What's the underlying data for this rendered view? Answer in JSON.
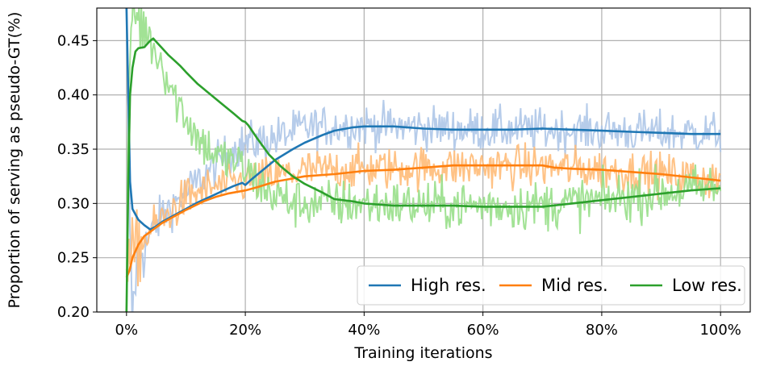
{
  "chart_data": {
    "type": "line",
    "title": "",
    "xlabel": "Training iterations",
    "ylabel": "Proportion of serving as pseudo-GT(%)",
    "xlim": [
      -5,
      105
    ],
    "ylim": [
      0.2,
      0.48
    ],
    "x_ticks": [
      0,
      20,
      40,
      60,
      80,
      100
    ],
    "x_tick_labels": [
      "0%",
      "20%",
      "40%",
      "60%",
      "80%",
      "100%"
    ],
    "y_ticks": [
      0.2,
      0.25,
      0.3,
      0.35,
      0.4,
      0.45
    ],
    "y_tick_labels": [
      "0.20",
      "0.25",
      "0.30",
      "0.35",
      "0.40",
      "0.45"
    ],
    "grid": true,
    "legend_position": "lower-right",
    "series": [
      {
        "name": "High res.",
        "color": "#1f77b4",
        "raw_color": "#aec7e8",
        "smoothed": [
          [
            0,
            0.48
          ],
          [
            0.3,
            0.4
          ],
          [
            0.6,
            0.32
          ],
          [
            1,
            0.295
          ],
          [
            2,
            0.285
          ],
          [
            3,
            0.28
          ],
          [
            4,
            0.276
          ],
          [
            5,
            0.279
          ],
          [
            6,
            0.283
          ],
          [
            8,
            0.289
          ],
          [
            10,
            0.295
          ],
          [
            12,
            0.301
          ],
          [
            14,
            0.306
          ],
          [
            16,
            0.311
          ],
          [
            18,
            0.316
          ],
          [
            19.5,
            0.319
          ],
          [
            20,
            0.317
          ],
          [
            21,
            0.322
          ],
          [
            23,
            0.331
          ],
          [
            25,
            0.34
          ],
          [
            28,
            0.35
          ],
          [
            30,
            0.356
          ],
          [
            33,
            0.363
          ],
          [
            35,
            0.367
          ],
          [
            38,
            0.37
          ],
          [
            40,
            0.371
          ],
          [
            45,
            0.371
          ],
          [
            50,
            0.369
          ],
          [
            55,
            0.368
          ],
          [
            60,
            0.368
          ],
          [
            65,
            0.368
          ],
          [
            70,
            0.369
          ],
          [
            75,
            0.368
          ],
          [
            80,
            0.367
          ],
          [
            85,
            0.366
          ],
          [
            90,
            0.365
          ],
          [
            95,
            0.364
          ],
          [
            100,
            0.364
          ]
        ],
        "raw": [
          [
            0,
            0.48
          ],
          [
            0.5,
            0.3
          ],
          [
            0.8,
            0.22
          ],
          [
            1,
            0.19
          ],
          [
            1.3,
            0.22
          ],
          [
            1.6,
            0.24
          ],
          [
            2,
            0.25
          ],
          [
            2.5,
            0.26
          ],
          [
            3,
            0.26
          ],
          [
            4,
            0.27
          ],
          [
            5,
            0.28
          ],
          [
            6,
            0.29
          ],
          [
            8,
            0.3
          ],
          [
            10,
            0.31
          ],
          [
            12,
            0.32
          ],
          [
            14,
            0.33
          ],
          [
            16,
            0.34
          ],
          [
            18,
            0.35
          ],
          [
            20,
            0.355
          ],
          [
            25,
            0.36
          ],
          [
            30,
            0.37
          ],
          [
            40,
            0.372
          ],
          [
            50,
            0.37
          ],
          [
            60,
            0.368
          ],
          [
            70,
            0.368
          ],
          [
            80,
            0.367
          ],
          [
            90,
            0.365
          ],
          [
            100,
            0.365
          ]
        ],
        "raw_noise": 0.014
      },
      {
        "name": "Mid res.",
        "color": "#ff7f0e",
        "raw_color": "#ffbb78",
        "smoothed": [
          [
            0,
            0.232
          ],
          [
            0.5,
            0.238
          ],
          [
            1,
            0.25
          ],
          [
            2,
            0.262
          ],
          [
            3,
            0.27
          ],
          [
            4,
            0.274
          ],
          [
            5,
            0.278
          ],
          [
            6,
            0.282
          ],
          [
            8,
            0.288
          ],
          [
            10,
            0.294
          ],
          [
            13,
            0.302
          ],
          [
            15,
            0.306
          ],
          [
            17,
            0.309
          ],
          [
            20,
            0.312
          ],
          [
            22,
            0.315
          ],
          [
            25,
            0.32
          ],
          [
            28,
            0.323
          ],
          [
            30,
            0.325
          ],
          [
            35,
            0.327
          ],
          [
            40,
            0.33
          ],
          [
            45,
            0.331
          ],
          [
            50,
            0.333
          ],
          [
            55,
            0.335
          ],
          [
            60,
            0.335
          ],
          [
            65,
            0.335
          ],
          [
            70,
            0.335
          ],
          [
            72,
            0.333
          ],
          [
            75,
            0.332
          ],
          [
            80,
            0.331
          ],
          [
            85,
            0.329
          ],
          [
            90,
            0.327
          ],
          [
            95,
            0.324
          ],
          [
            100,
            0.321
          ]
        ],
        "raw": [
          [
            0,
            0.24
          ],
          [
            1,
            0.25
          ],
          [
            2,
            0.26
          ],
          [
            3,
            0.265
          ],
          [
            4,
            0.275
          ],
          [
            6,
            0.285
          ],
          [
            8,
            0.295
          ],
          [
            10,
            0.305
          ],
          [
            12,
            0.31
          ],
          [
            15,
            0.315
          ],
          [
            20,
            0.32
          ],
          [
            25,
            0.325
          ],
          [
            30,
            0.33
          ],
          [
            40,
            0.332
          ],
          [
            50,
            0.333
          ],
          [
            60,
            0.334
          ],
          [
            70,
            0.334
          ],
          [
            80,
            0.331
          ],
          [
            90,
            0.327
          ],
          [
            100,
            0.322
          ]
        ],
        "raw_noise": 0.014
      },
      {
        "name": "Low res.",
        "color": "#2ca02c",
        "raw_color": "#98df8a",
        "smoothed": [
          [
            0,
            0.2
          ],
          [
            0.3,
            0.32
          ],
          [
            0.6,
            0.4
          ],
          [
            1,
            0.425
          ],
          [
            1.5,
            0.44
          ],
          [
            2,
            0.443
          ],
          [
            3,
            0.444
          ],
          [
            4,
            0.45
          ],
          [
            4.5,
            0.452
          ],
          [
            5,
            0.449
          ],
          [
            6,
            0.443
          ],
          [
            7,
            0.437
          ],
          [
            8,
            0.432
          ],
          [
            9,
            0.427
          ],
          [
            10,
            0.421
          ],
          [
            12,
            0.41
          ],
          [
            14,
            0.401
          ],
          [
            16,
            0.392
          ],
          [
            18,
            0.383
          ],
          [
            19.5,
            0.376
          ],
          [
            20,
            0.375
          ],
          [
            20.5,
            0.372
          ],
          [
            22,
            0.36
          ],
          [
            24,
            0.345
          ],
          [
            26,
            0.334
          ],
          [
            28,
            0.325
          ],
          [
            30,
            0.318
          ],
          [
            33,
            0.31
          ],
          [
            35,
            0.304
          ],
          [
            38,
            0.302
          ],
          [
            40,
            0.3
          ],
          [
            45,
            0.298
          ],
          [
            50,
            0.298
          ],
          [
            55,
            0.298
          ],
          [
            60,
            0.297
          ],
          [
            65,
            0.297
          ],
          [
            70,
            0.297
          ],
          [
            75,
            0.3
          ],
          [
            80,
            0.303
          ],
          [
            85,
            0.306
          ],
          [
            90,
            0.309
          ],
          [
            95,
            0.312
          ],
          [
            100,
            0.314
          ]
        ],
        "raw": [
          [
            0,
            0.2
          ],
          [
            0.3,
            0.35
          ],
          [
            0.6,
            0.45
          ],
          [
            1,
            0.48
          ],
          [
            2,
            0.47
          ],
          [
            3,
            0.46
          ],
          [
            4,
            0.45
          ],
          [
            6,
            0.43
          ],
          [
            8,
            0.4
          ],
          [
            10,
            0.38
          ],
          [
            12,
            0.36
          ],
          [
            14,
            0.35
          ],
          [
            16,
            0.34
          ],
          [
            18,
            0.34
          ],
          [
            20,
            0.33
          ],
          [
            24,
            0.31
          ],
          [
            28,
            0.3
          ],
          [
            32,
            0.3
          ],
          [
            40,
            0.3
          ],
          [
            50,
            0.298
          ],
          [
            60,
            0.298
          ],
          [
            70,
            0.298
          ],
          [
            80,
            0.303
          ],
          [
            90,
            0.31
          ],
          [
            100,
            0.315
          ]
        ],
        "raw_noise": 0.016
      }
    ]
  }
}
